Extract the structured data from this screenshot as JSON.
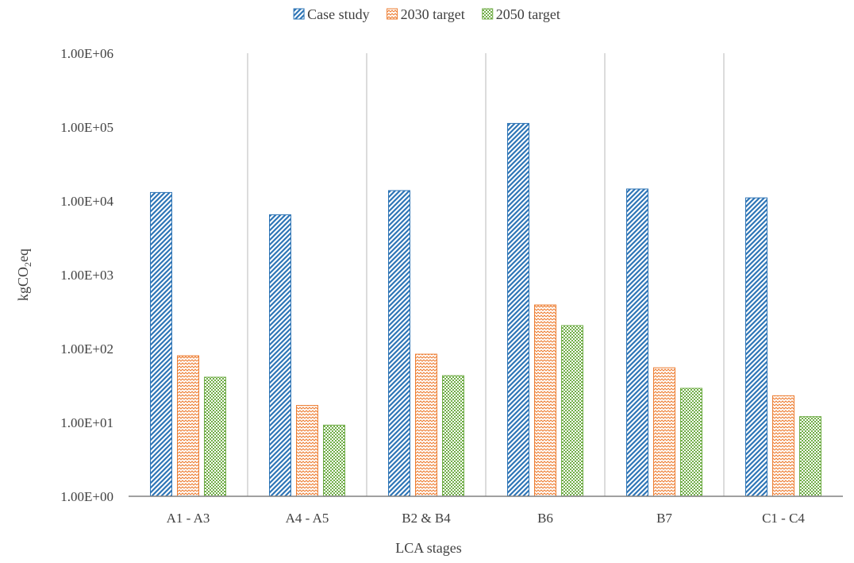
{
  "chart_data": {
    "type": "bar",
    "xlabel": "LCA stages",
    "ylabel_main": "kgCO",
    "ylabel_sub": "2",
    "ylabel_suffix": "eq",
    "yscale": "log",
    "ylim": [
      1,
      1000000
    ],
    "yticks": [
      {
        "value": 1,
        "label": "1.00E+00"
      },
      {
        "value": 10,
        "label": "1.00E+01"
      },
      {
        "value": 100,
        "label": "1.00E+02"
      },
      {
        "value": 1000,
        "label": "1.00E+03"
      },
      {
        "value": 10000,
        "label": "1.00E+04"
      },
      {
        "value": 100000,
        "label": "1.00E+05"
      },
      {
        "value": 1000000,
        "label": "1.00E+06"
      }
    ],
    "categories": [
      "A1 - A3",
      "A4 - A5",
      "B2 & B4",
      "B6",
      "B7",
      "C1 - C4"
    ],
    "series": [
      {
        "name": "Case study",
        "color": "#2e75b6",
        "pattern": "diagonal",
        "values": [
          13000,
          6500,
          13800,
          112000,
          14500,
          11000
        ]
      },
      {
        "name": "2030 target",
        "color": "#ed7d31",
        "pattern": "zigzag",
        "values": [
          80,
          17,
          84,
          390,
          55,
          23
        ]
      },
      {
        "name": "2050 target",
        "color": "#70ad47",
        "pattern": "checker",
        "values": [
          41,
          9.2,
          43,
          205,
          29,
          12
        ]
      }
    ],
    "legend_position": "top-center",
    "grid": {
      "vertical_separators": true,
      "horizontal": false
    }
  }
}
